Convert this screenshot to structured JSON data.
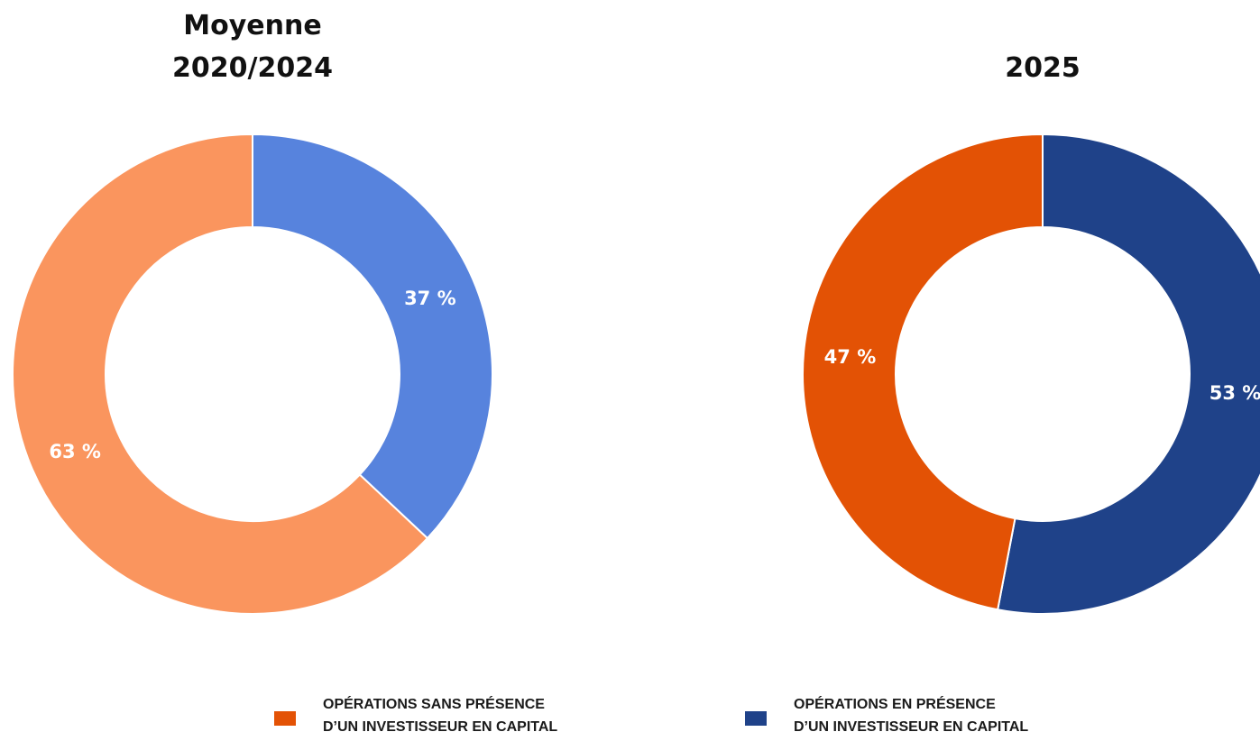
{
  "legend": [
    {
      "name": [
        "OPÉRATIONS SANS PRÉSENCE",
        "D’UN INVESTISSEUR EN CAPITAL"
      ]
    },
    {
      "name": [
        "OPÉRATIONS EN PRÉSENCE",
        "D’UN INVESTISSEUR EN CAPITAL"
      ]
    }
  ],
  "legend_colors": [
    "#e35205",
    "#1f4289"
  ],
  "chart_data": [
    {
      "type": "pie",
      "donut": true,
      "title": [
        "Moyenne",
        "2020/2024"
      ],
      "values": [
        63,
        37
      ],
      "value_labels": [
        "63 %",
        "37 %"
      ],
      "colors": [
        "#fa955e",
        "#5783dd"
      ]
    },
    {
      "type": "pie",
      "donut": true,
      "title": [
        "2025"
      ],
      "values": [
        47,
        53
      ],
      "value_labels": [
        "47 %",
        "53 %"
      ],
      "colors": [
        "#e35205",
        "#1f4289"
      ]
    }
  ]
}
